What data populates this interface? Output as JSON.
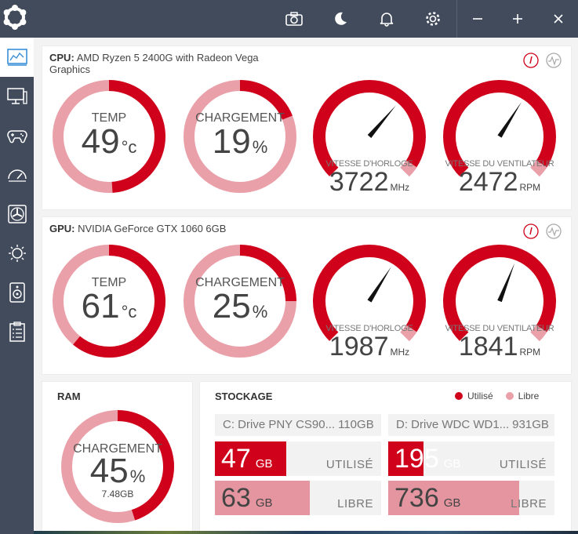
{
  "colors": {
    "accent": "#d0021b",
    "light": "#eaa0a9",
    "sidebar": "#414b5b",
    "bar_fill_light": "#e4959f"
  },
  "topbar_icons": [
    "logo-icon",
    "camera-icon",
    "moon-icon",
    "bell-icon",
    "gear-icon",
    "minimize-icon",
    "maximize-icon",
    "close-icon"
  ],
  "sidebar_icons": [
    "dashboard-icon",
    "monitor-icon",
    "gamepad-icon",
    "speedometer-icon",
    "fan-icon",
    "brightness-icon",
    "speaker-icon",
    "clipboard-icon"
  ],
  "cpu": {
    "label": "CPU:",
    "name": "AMD Ryzen 5 2400G with Radeon Vega Graphics",
    "temp": {
      "label": "TEMP",
      "value": "49",
      "unit": "°c",
      "fraction": 0.49
    },
    "load": {
      "label": "CHARGEMENT",
      "value": "19",
      "unit": "%",
      "fraction": 0.19
    },
    "clock": {
      "label": "VITESSE D'HORLOGE",
      "value": "3722",
      "unit": "MHz",
      "fraction": 0.65
    },
    "fan": {
      "label": "VITESSE DU VENTILATEUR",
      "value": "2472",
      "unit": "RPM",
      "fraction": 0.62
    }
  },
  "gpu": {
    "label": "GPU:",
    "name": "NVIDIA GeForce GTX 1060 6GB",
    "temp": {
      "label": "TEMP",
      "value": "61",
      "unit": "°c",
      "fraction": 0.61
    },
    "load": {
      "label": "CHARGEMENT",
      "value": "25",
      "unit": "%",
      "fraction": 0.25
    },
    "clock": {
      "label": "VITESSE D'HORLOGE",
      "value": "1987",
      "unit": "MHz",
      "fraction": 0.62
    },
    "fan": {
      "label": "VITESSE DU VENTILATEUR",
      "value": "1841",
      "unit": "RPM",
      "fraction": 0.58
    }
  },
  "ram": {
    "title": "RAM",
    "label": "CHARGEMENT",
    "value": "45",
    "unit": "%",
    "detail": "7.48GB",
    "fraction": 0.45
  },
  "storage": {
    "title": "STOCKAGE",
    "legend_used": "Utilisé",
    "legend_free": "Libre",
    "drives": [
      {
        "name": "C: Drive PNY CS90...",
        "size": "110GB",
        "used_value": "47",
        "used_unit": "GB",
        "used_label": "UTILISÉ",
        "used_fraction": 0.43,
        "free_value": "63",
        "free_unit": "GB",
        "free_label": "LIBRE",
        "free_fraction": 0.57
      },
      {
        "name": "D: Drive WDC WD1...",
        "size": "931GB",
        "used_value": "195",
        "used_unit": "GB",
        "used_label": "UTILISÉ",
        "used_fraction": 0.21,
        "free_value": "736",
        "free_unit": "GB",
        "free_label": "LIBRE",
        "free_fraction": 0.79
      }
    ]
  }
}
